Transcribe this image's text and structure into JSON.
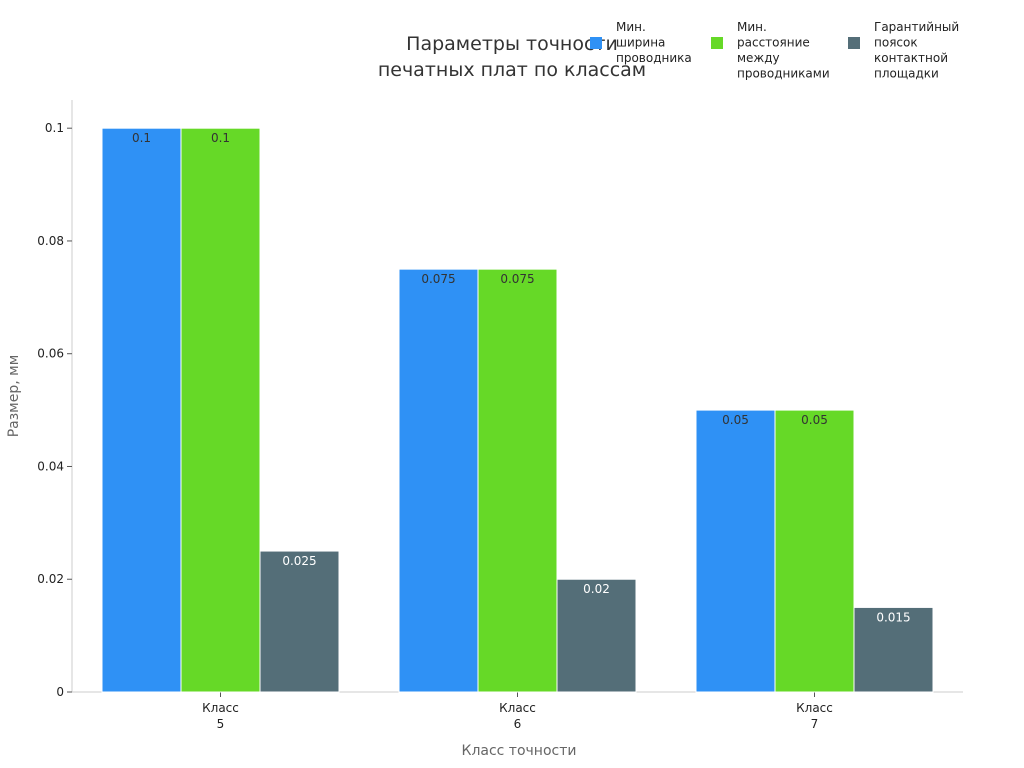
{
  "chart_data": {
    "type": "bar",
    "title": [
      "Параметры точности",
      "печатных плат по классам"
    ],
    "xlabel": "Класс точности",
    "ylabel": "Размер, мм",
    "categories": [
      [
        "Класс",
        "5"
      ],
      [
        "Класс",
        "6"
      ],
      [
        "Класс",
        "7"
      ]
    ],
    "ylim": [
      0,
      0.105
    ],
    "yticks": [
      "0",
      "0.02",
      "0.04",
      "0.06",
      "0.08",
      "0.1"
    ],
    "ytick_values": [
      0,
      0.02,
      0.04,
      0.06,
      0.08,
      0.1
    ],
    "legend_position": "top-right",
    "grid": false,
    "series": [
      {
        "name": [
          "Мин.",
          "ширина",
          "проводника"
        ],
        "color": "#2f91f5",
        "label_color": "#333333",
        "values": [
          0.1,
          0.075,
          0.05
        ],
        "labels": [
          "0.1",
          "0.075",
          "0.05"
        ]
      },
      {
        "name": [
          "Мин.",
          "расстояние",
          "между",
          "проводниками"
        ],
        "color": "#66d927",
        "label_color": "#333333",
        "values": [
          0.1,
          0.075,
          0.05
        ],
        "labels": [
          "0.1",
          "0.075",
          "0.05"
        ]
      },
      {
        "name": [
          "Гарантийный",
          "поясок",
          "контактной",
          "площадки"
        ],
        "color": "#546e78",
        "label_color": "#ffffff",
        "values": [
          0.025,
          0.02,
          0.015
        ],
        "labels": [
          "0.025",
          "0.02",
          "0.015"
        ]
      }
    ]
  }
}
